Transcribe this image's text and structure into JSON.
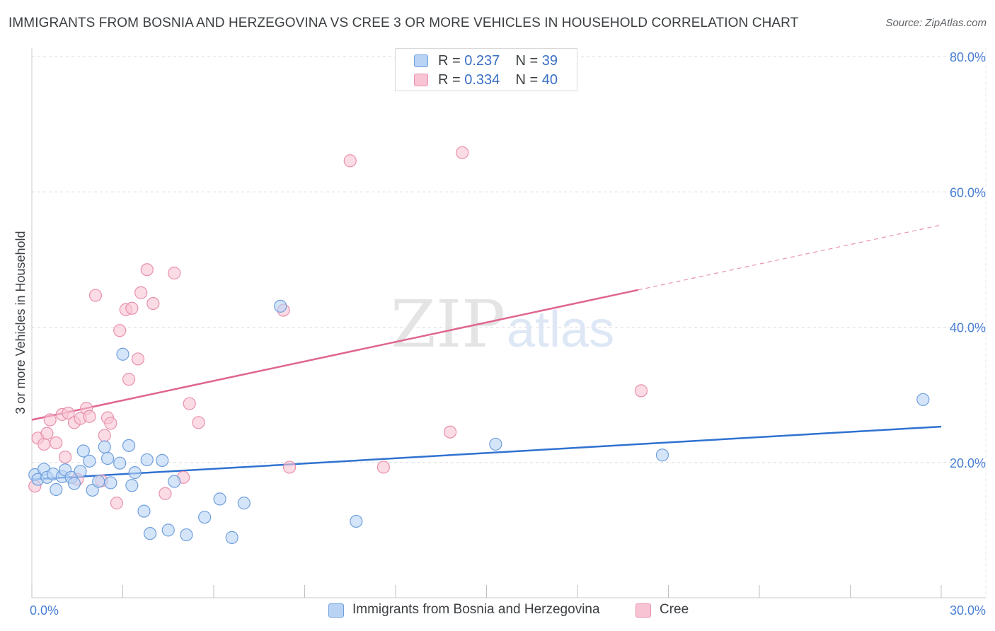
{
  "title": "IMMIGRANTS FROM BOSNIA AND HERZEGOVINA VS CREE 3 OR MORE VEHICLES IN HOUSEHOLD CORRELATION CHART",
  "source": "Source: ZipAtlas.com",
  "watermark": {
    "zip": "ZIP",
    "atlas": "atlas"
  },
  "colors": {
    "blue_fill": "#b9d3f5",
    "blue_stroke": "#6f9fdc",
    "blue_line": "#2f72d0",
    "pink_fill": "#f8c4d4",
    "pink_stroke": "#e990ac",
    "pink_line": "#e0658f",
    "grid": "#dddddd",
    "axis_text": "#4a7fd4"
  },
  "legend_top": {
    "rows": [
      {
        "r_label": "R = ",
        "r_value": "0.237",
        "n_label": "N = ",
        "n_value": "39"
      },
      {
        "r_label": "R = ",
        "r_value": "0.334",
        "n_label": "N = ",
        "n_value": "40"
      }
    ]
  },
  "legend_bottom": {
    "items": [
      {
        "label": "Immigrants from Bosnia and Herzegovina"
      },
      {
        "label": "Cree"
      }
    ]
  },
  "chart_data": {
    "type": "scatter",
    "title": "IMMIGRANTS FROM BOSNIA AND HERZEGOVINA VS CREE 3 OR MORE VEHICLES IN HOUSEHOLD CORRELATION CHART",
    "xlabel": "",
    "ylabel": "3 or more Vehicles in Household",
    "xlim": [
      0,
      30
    ],
    "ylim": [
      0,
      80
    ],
    "x_tick_labels": [
      "0.0%",
      "30.0%"
    ],
    "y_ticks": [
      20,
      40,
      60,
      80
    ],
    "y_tick_labels": [
      "20.0%",
      "40.0%",
      "60.0%",
      "80.0%"
    ],
    "grid": true,
    "legend_position": "top-center",
    "series": [
      {
        "name": "Immigrants from Bosnia and Herzegovina",
        "R": 0.237,
        "N": 39,
        "points": [
          [
            0.1,
            18.2
          ],
          [
            0.2,
            17.5
          ],
          [
            0.4,
            19.0
          ],
          [
            0.5,
            17.8
          ],
          [
            0.7,
            18.3
          ],
          [
            0.8,
            16.0
          ],
          [
            1.0,
            17.9
          ],
          [
            1.1,
            18.9
          ],
          [
            1.3,
            17.8
          ],
          [
            1.4,
            16.9
          ],
          [
            1.6,
            18.7
          ],
          [
            1.7,
            21.7
          ],
          [
            1.9,
            20.2
          ],
          [
            2.0,
            15.9
          ],
          [
            2.2,
            17.2
          ],
          [
            2.4,
            22.3
          ],
          [
            2.5,
            20.6
          ],
          [
            2.6,
            17.0
          ],
          [
            2.9,
            19.9
          ],
          [
            3.0,
            36.0
          ],
          [
            3.2,
            22.5
          ],
          [
            3.3,
            16.6
          ],
          [
            3.4,
            18.5
          ],
          [
            3.7,
            12.8
          ],
          [
            3.8,
            20.4
          ],
          [
            3.9,
            9.5
          ],
          [
            4.3,
            20.3
          ],
          [
            4.5,
            10.0
          ],
          [
            4.7,
            17.2
          ],
          [
            5.1,
            9.3
          ],
          [
            5.7,
            11.9
          ],
          [
            6.2,
            14.6
          ],
          [
            6.6,
            8.9
          ],
          [
            7.0,
            14.0
          ],
          [
            8.2,
            43.1
          ],
          [
            10.7,
            11.3
          ],
          [
            15.3,
            22.7
          ],
          [
            20.8,
            21.1
          ],
          [
            29.4,
            29.3
          ]
        ],
        "trend": {
          "x": [
            0,
            30
          ],
          "y": [
            17.5,
            25.3
          ]
        }
      },
      {
        "name": "Cree",
        "R": 0.334,
        "N": 40,
        "points": [
          [
            0.1,
            16.5
          ],
          [
            0.2,
            23.6
          ],
          [
            0.4,
            22.7
          ],
          [
            0.5,
            24.3
          ],
          [
            0.6,
            26.3
          ],
          [
            0.8,
            22.9
          ],
          [
            1.0,
            27.1
          ],
          [
            1.1,
            20.8
          ],
          [
            1.2,
            27.3
          ],
          [
            1.4,
            25.9
          ],
          [
            1.5,
            17.5
          ],
          [
            1.6,
            26.5
          ],
          [
            1.8,
            28.0
          ],
          [
            1.9,
            26.8
          ],
          [
            2.1,
            44.7
          ],
          [
            2.3,
            17.3
          ],
          [
            2.4,
            24.0
          ],
          [
            2.5,
            26.6
          ],
          [
            2.6,
            25.8
          ],
          [
            2.8,
            14.0
          ],
          [
            2.9,
            39.5
          ],
          [
            3.1,
            42.6
          ],
          [
            3.2,
            32.3
          ],
          [
            3.3,
            42.8
          ],
          [
            3.5,
            35.3
          ],
          [
            3.6,
            45.1
          ],
          [
            3.8,
            48.5
          ],
          [
            4.0,
            43.5
          ],
          [
            4.4,
            15.4
          ],
          [
            4.7,
            48.0
          ],
          [
            5.0,
            17.8
          ],
          [
            5.2,
            28.7
          ],
          [
            5.5,
            25.9
          ],
          [
            8.3,
            42.5
          ],
          [
            8.5,
            19.3
          ],
          [
            10.5,
            64.6
          ],
          [
            11.6,
            19.3
          ],
          [
            13.8,
            24.5
          ],
          [
            14.2,
            65.8
          ],
          [
            20.1,
            30.6
          ]
        ],
        "trend": {
          "x": [
            0,
            20
          ],
          "y": [
            26.3,
            45.5
          ]
        },
        "trend_dashed": {
          "x": [
            20,
            30
          ],
          "y": [
            45.5,
            55.1
          ]
        }
      }
    ]
  }
}
